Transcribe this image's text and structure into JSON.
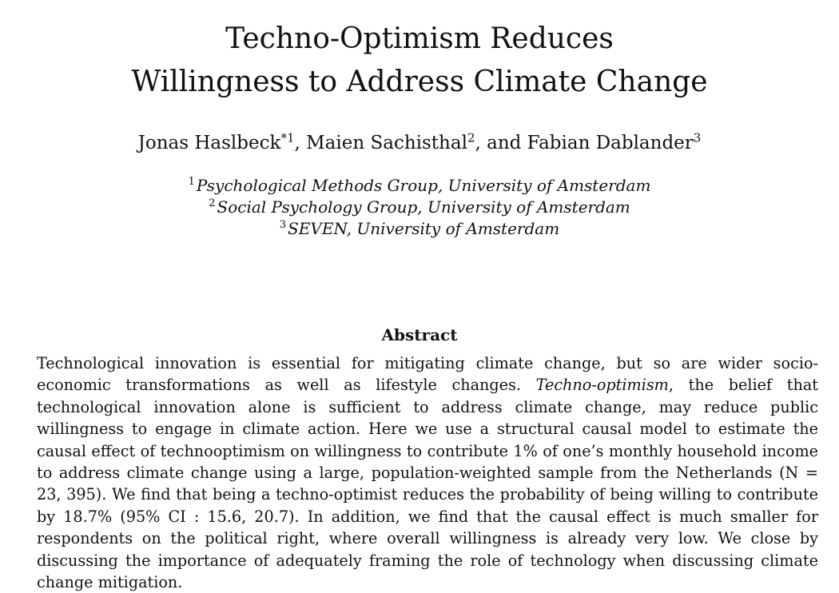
{
  "paper": {
    "title_line1": "Techno-Optimism Reduces",
    "title_line2": "Willingness to Address Climate Change",
    "authors": [
      {
        "name": "Jonas Haslbeck",
        "marker": "*1",
        "sep": ", "
      },
      {
        "name": "Maien Sachisthal",
        "marker": "2",
        "sep": ", and "
      },
      {
        "name": "Fabian Dablander",
        "marker": "3",
        "sep": ""
      }
    ],
    "affiliations": [
      {
        "marker": "1",
        "text": "Psychological Methods Group, University of Amsterdam"
      },
      {
        "marker": "2",
        "text": "Social Psychology Group, University of Amsterdam"
      },
      {
        "marker": "3",
        "text": "SEVEN, University of Amsterdam"
      }
    ],
    "abstract_heading": "Abstract",
    "abstract_part1": "Technological innovation is essential for mitigating climate change, but so are wider socio-economic transformations as well as lifestyle changes. ",
    "abstract_emph": "Techno-optimism",
    "abstract_part2": ", the belief that technological inno­vation alone is sufficient to address climate change, may reduce public willingness to engage in climate action. Here we use a structural causal model to estimate the causal effect of techno­optimism on willingness to contribute 1% of one’s monthly household income to address climate change using a large, population-weighted sample from the Netherlands (N = 23, 395). We find that being a techno-optimist reduces the probability of being willing to contribute by 18.7% (95% CI : 15.6, 20.7). In addition, we find that the causal effect is much smaller for respondents on the political right, where overall willingness is already very low. We close by discussing the importance of adequately framing the role of technology when discussing climate change mitigation."
  }
}
